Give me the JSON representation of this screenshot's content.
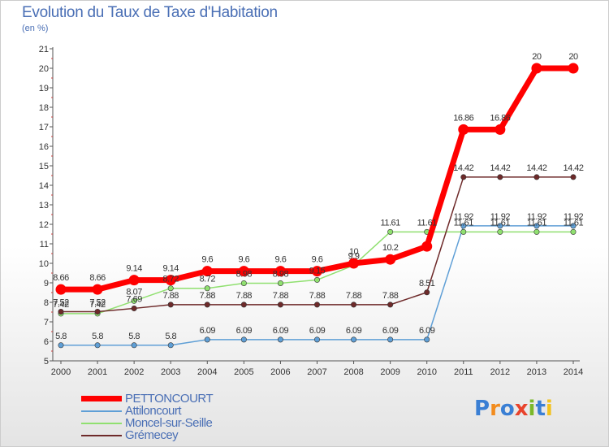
{
  "title": "Evolution du Taux de Taxe d'Habitation",
  "unit_label": "(en %)",
  "logo": {
    "text": "Proxiti",
    "letter_colors": [
      "#3a7fd4",
      "#f28c1e",
      "#3a7fd4",
      "#e8432c",
      "#7ab829",
      "#3a7fd4",
      "#f2c21e"
    ]
  },
  "chart_data": {
    "type": "line",
    "title": "Evolution du Taux de Taxe d'Habitation",
    "ylabel": "(en %)",
    "xlabel": "",
    "ylim": [
      5,
      21
    ],
    "grid": false,
    "legend_position": "bottom-left",
    "x": [
      "2000",
      "2001",
      "2002",
      "2003",
      "2004",
      "2005",
      "2006",
      "2007",
      "2008",
      "2009",
      "2010",
      "2011",
      "2012",
      "2013",
      "2014"
    ],
    "yticks": [
      "5",
      "6",
      "7",
      "8",
      "9",
      "10",
      "11",
      "12",
      "13",
      "14",
      "15",
      "16",
      "17",
      "18",
      "19",
      "20",
      "21"
    ],
    "series": [
      {
        "name": "PETTONCOURT",
        "color": "#ff0000",
        "values": [
          8.66,
          8.66,
          9.14,
          9.14,
          9.6,
          9.6,
          9.6,
          9.6,
          10,
          10.2,
          10.87,
          16.86,
          16.86,
          20,
          20
        ],
        "labels": [
          "8.66",
          "8.66",
          "9.14",
          "9.14",
          "9.6",
          "9.6",
          "9.6",
          "9.6",
          "10",
          "10.2",
          "",
          "16.86",
          "16.86",
          "20",
          "20"
        ]
      },
      {
        "name": "Attiloncourt",
        "color": "#5f9fd6",
        "values": [
          5.8,
          5.8,
          5.8,
          5.8,
          6.09,
          6.09,
          6.09,
          6.09,
          6.09,
          6.09,
          6.09,
          11.92,
          11.92,
          11.92,
          11.92
        ],
        "labels": [
          "5.8",
          "5.8",
          "5.8",
          "5.8",
          "6.09",
          "6.09",
          "6.09",
          "6.09",
          "6.09",
          "6.09",
          "6.09",
          "11.92",
          "11.92",
          "11.92",
          "11.92"
        ]
      },
      {
        "name": "Moncel-sur-Seille",
        "color": "#90e070",
        "values": [
          7.42,
          7.42,
          8.07,
          8.72,
          8.72,
          8.98,
          8.98,
          9.15,
          9.9,
          11.61,
          11.61,
          11.61,
          11.61,
          11.61,
          11.61
        ],
        "labels": [
          "7.42",
          "7.42",
          "8.07",
          "8.72",
          "8.72",
          "8.98",
          "8.98",
          "9.15",
          "9.9",
          "11.61",
          "11.61",
          "11.61",
          "11.61",
          "11.61",
          "11.61"
        ]
      },
      {
        "name": "Grémecey",
        "color": "#6e2a2a",
        "values": [
          7.52,
          7.52,
          7.69,
          7.88,
          7.88,
          7.88,
          7.88,
          7.88,
          7.88,
          7.88,
          8.51,
          14.42,
          14.42,
          14.42,
          14.42
        ],
        "labels": [
          "7.52",
          "7.52",
          "7.69",
          "7.88",
          "7.88",
          "7.88",
          "7.88",
          "7.88",
          "7.88",
          "7.88",
          "8.51",
          "14.42",
          "14.42",
          "14.42",
          "14.42"
        ]
      }
    ]
  }
}
